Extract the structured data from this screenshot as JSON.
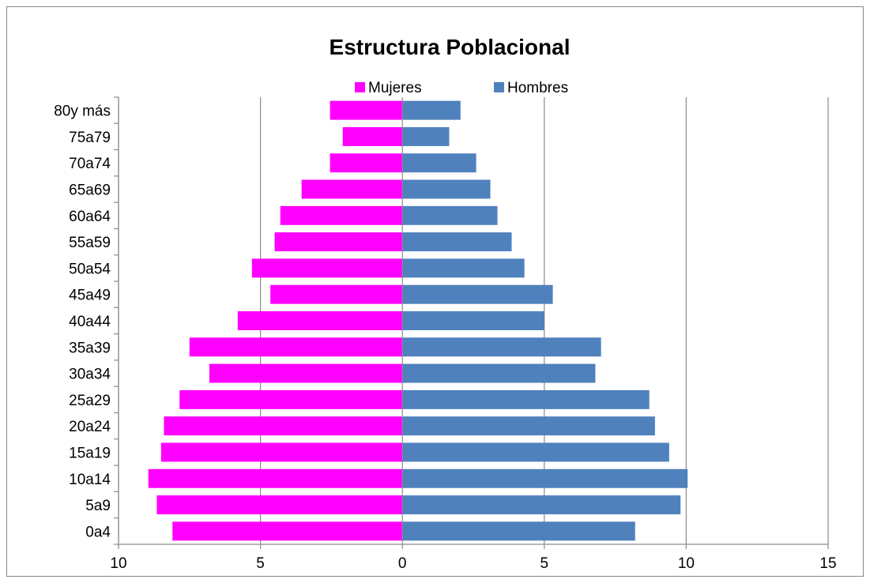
{
  "chart_data": {
    "type": "bar",
    "orientation": "horizontal",
    "title": "Estructura Poblacional",
    "categories": [
      "0a4",
      "5a9",
      "10a14",
      "15a19",
      "20a24",
      "25a29",
      "30a34",
      "35a39",
      "40a44",
      "45a49",
      "50a54",
      "55a59",
      "60a64",
      "65a69",
      "70a74",
      "75a79",
      "80y más"
    ],
    "series": [
      {
        "name": "Mujeres",
        "color": "#FF00FF",
        "side": "left",
        "values": [
          8.1,
          8.65,
          8.95,
          8.5,
          8.4,
          7.85,
          6.8,
          7.5,
          5.8,
          4.65,
          5.3,
          4.5,
          4.3,
          3.55,
          2.55,
          2.1,
          2.55
        ]
      },
      {
        "name": "Hombres",
        "color": "#4F81BD",
        "side": "right",
        "values": [
          8.2,
          9.8,
          10.05,
          9.4,
          8.9,
          8.7,
          6.8,
          7.0,
          5.0,
          5.3,
          4.3,
          3.85,
          3.35,
          3.1,
          2.6,
          1.65,
          2.05
        ]
      }
    ],
    "xlim": [
      -10,
      15
    ],
    "xticks": [
      -10,
      -5,
      0,
      5,
      10,
      15
    ],
    "xtick_labels": [
      "10",
      "5",
      "0",
      "5",
      "10",
      "15"
    ],
    "grid": true,
    "legend": "top-center"
  }
}
